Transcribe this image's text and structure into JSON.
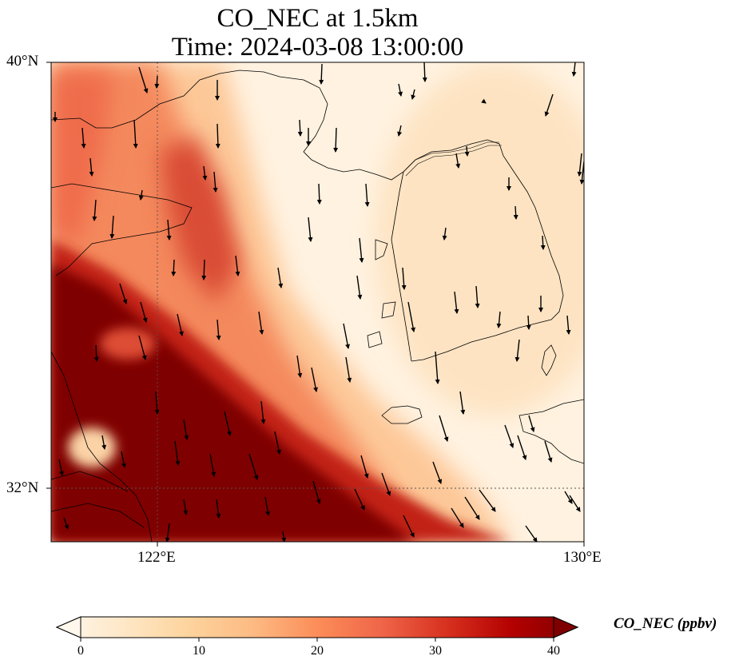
{
  "title_line1": "CO_NEC at 1.5km",
  "title_line2": "Time: 2024-03-08 13:00:00",
  "map": {
    "lon_range": [
      120.4,
      130.0
    ],
    "lat_range": [
      31.1,
      40.0
    ],
    "lat_ticks": [
      {
        "value": 40,
        "label": "40°N"
      },
      {
        "value": 32,
        "label": "32°N"
      }
    ],
    "lon_ticks": [
      {
        "value": 122,
        "label": "122°E"
      },
      {
        "value": 130,
        "label": "130°E"
      }
    ],
    "gridlines": {
      "lon": [
        122
      ],
      "lat": [
        32
      ],
      "style": "dotted"
    }
  },
  "colorbar": {
    "label": "CO_NEC (ppbv)",
    "ticks": [
      0,
      10,
      20,
      30,
      40
    ],
    "tick_labels": [
      "0",
      "10",
      "20",
      "30",
      "40"
    ],
    "range": [
      0,
      40
    ],
    "extend": "both",
    "colormap": "OrRd",
    "colors": [
      "#fff7ec",
      "#fee8c8",
      "#fdd49e",
      "#fdbb84",
      "#fc8d59",
      "#ef6548",
      "#d7301f",
      "#b30000",
      "#7f0000"
    ]
  },
  "legend_placement": "bottom"
}
